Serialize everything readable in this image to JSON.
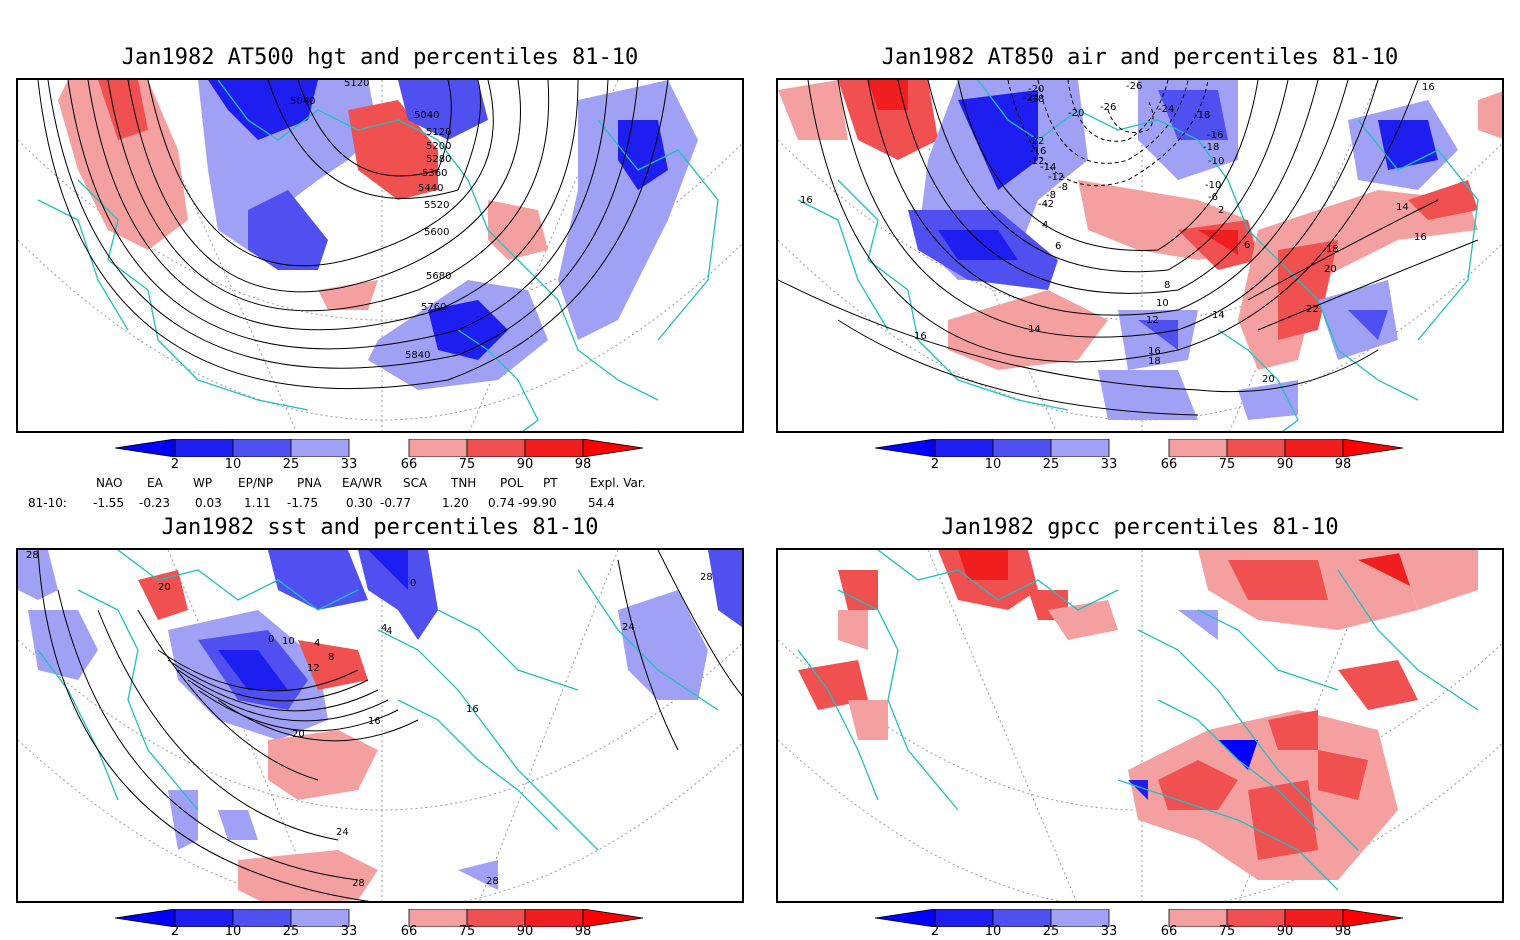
{
  "panels": {
    "hgt500": {
      "title": "Jan1982 AT500 hgt and percentiles 81-10",
      "contour_labels": [
        "5120",
        "5040",
        "5040",
        "5120",
        "5200",
        "5280",
        "5360",
        "5440",
        "5520",
        "5600",
        "5680",
        "5760",
        "5840"
      ]
    },
    "air850": {
      "title": "Jan1982 AT850 air and percentiles 81-10",
      "contour_labels": [
        "-20",
        "-18",
        "-24",
        "-26",
        "-26",
        "-24",
        "-20",
        "-18",
        "-22",
        "-16",
        "-14",
        "-12",
        "-10",
        "-8",
        "-6",
        "-4",
        "-2",
        "2",
        "4",
        "6",
        "6",
        "8",
        "10",
        "12",
        "14",
        "14",
        "16",
        "16",
        "16",
        "18",
        "18",
        "20",
        "20",
        "22",
        "14",
        "16",
        "16",
        "-8",
        "-10",
        "-12",
        "-16",
        "-18"
      ]
    },
    "sst": {
      "title": "Jan1982 sst and percentiles 81-10",
      "contour_labels": [
        "28",
        "20",
        "0",
        "10",
        "4",
        "4",
        "8",
        "12",
        "16",
        "20",
        "16",
        "24",
        "24",
        "28",
        "28",
        "28",
        "4",
        "0"
      ]
    },
    "gpcc": {
      "title": "Jan1982 gpcc percentiles 81-10"
    }
  },
  "colorbar": {
    "labels": [
      "2",
      "10",
      "25",
      "33",
      "66",
      "75",
      "90",
      "98"
    ],
    "colors": {
      "below_2": "#0000ff",
      "b2_10": "#1e1ef0",
      "b10_25": "#5050f0",
      "b25_33": "#a0a0f5",
      "b66_75": "#f5a0a0",
      "b75_90": "#f05050",
      "b90_98": "#f01e1e",
      "above_98": "#ff0000"
    }
  },
  "teleconnections": {
    "headers": [
      "NAO",
      "EA",
      "WP",
      "EP/NP",
      "PNA",
      "EA/WR",
      "SCA",
      "TNH",
      "POL",
      "PT",
      "Expl. Var."
    ],
    "row_label": "81-10:",
    "values": [
      "-1.55",
      "-0.23",
      "0.03",
      "1.11",
      "-1.75",
      "0.30",
      "-0.77",
      "1.20",
      "0.74",
      "-99.90",
      "54.4"
    ]
  },
  "colors": {
    "coast": "#1fc0c0",
    "contour": "#000000",
    "grid": "#999999"
  }
}
